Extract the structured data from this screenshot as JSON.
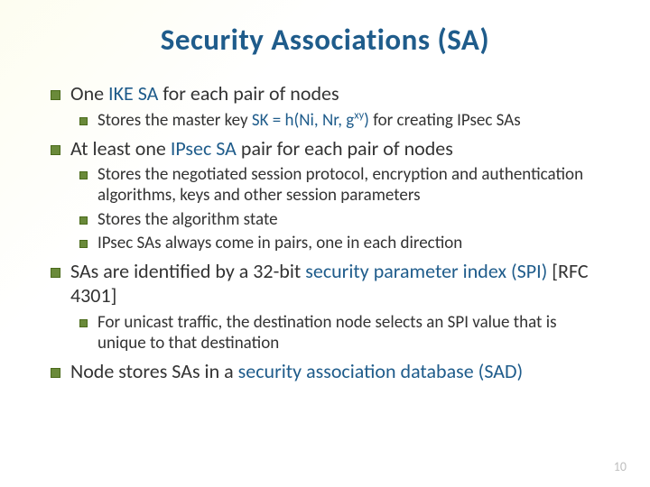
{
  "title": "Security Associations (SA)",
  "b1": {
    "pre": "One ",
    "hl": "IKE SA",
    "post": " for each pair of nodes"
  },
  "b1_1": {
    "pre": "Stores the master key ",
    "hl1": "SK = h(N",
    "i_sub": "i",
    "mid1": ", N",
    "r_sub": "r",
    "mid2": ", g",
    "xy": "xy",
    "hl2": ")",
    "post": " for creating IPsec SAs"
  },
  "b2": {
    "pre": "At least one ",
    "hl": "IPsec SA",
    "post": " pair for each pair of nodes"
  },
  "b2_1": "Stores the negotiated session protocol, encryption and authentication algorithms, keys and other session parameters",
  "b2_2": "Stores the algorithm state",
  "b2_3": "IPsec SAs always come in pairs, one in each direction",
  "b3": {
    "pre": "SAs are identified by a 32-bit ",
    "hl": "security parameter index (SPI)",
    "post": " [RFC 4301]"
  },
  "b3_1": "For unicast traffic, the destination node selects an SPI value that is unique to that destination",
  "b4": {
    "pre": "Node stores SAs in a ",
    "hl": "security association database (SAD)",
    "post": ""
  },
  "pagenum": "10",
  "colors": {
    "title": "#1f5c8b",
    "highlight": "#1f5c8b",
    "bullet_fill": "#6a8a3a",
    "bullet_border": "#4a6a1a",
    "text": "#333333",
    "pagenum": "#bfbfbf",
    "bg_tint": "#fdfdf0"
  },
  "fonts": {
    "title_size_pt": 25,
    "l1_size_pt": 17,
    "l2_size_pt": 14,
    "family": "Calibri"
  }
}
